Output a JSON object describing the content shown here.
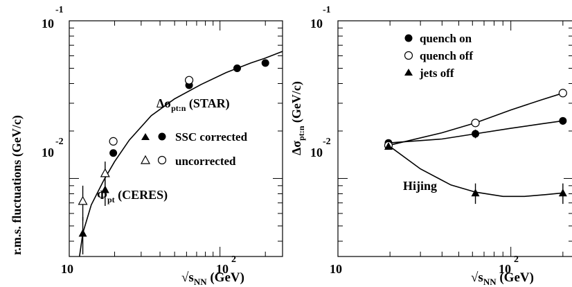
{
  "chart_data": [
    {
      "type": "scatter",
      "x_scale": "log",
      "y_scale": "log",
      "xlim": [
        10,
        260
      ],
      "ylim": [
        0.0032,
        0.1
      ],
      "x_ticklabels": {
        "base": "10",
        "exp": "2",
        "ten": "10"
      },
      "y_ticklabels": {
        "base": "10",
        "exp_top": "-1",
        "exp_mid": "-2"
      },
      "ylabel": "r.m.s. fluctuations (GeV/c)",
      "xlabel": {
        "prefix": "√s",
        "sub": "NN",
        "suffix": " (GeV)"
      },
      "annotations": {
        "star": {
          "prefix": "Δσ",
          "sub": "pt:n",
          "suffix": " (STAR)"
        },
        "ceres": {
          "prefix": "Φ",
          "sub": "pt",
          "suffix": " (CERES)"
        }
      },
      "legend": {
        "placement": "right-middle",
        "entries": [
          "SSC corrected",
          "uncorrected"
        ]
      },
      "series": [
        {
          "marker": "filled-triangle",
          "x": [
            12.3,
            17.3
          ],
          "y": [
            0.0045,
            0.0085
          ],
          "err": [
            0.0012,
            0.0018
          ]
        },
        {
          "marker": "open-triangle",
          "x": [
            12.3,
            17.3
          ],
          "y": [
            0.0072,
            0.0108
          ],
          "err": [
            0.0018,
            0.002
          ]
        },
        {
          "marker": "filled-circle",
          "x": [
            19.6,
            62.4,
            130,
            200
          ],
          "y": [
            0.0145,
            0.039,
            0.05,
            0.054
          ]
        },
        {
          "marker": "open-circle",
          "x": [
            19.6,
            62.4
          ],
          "y": [
            0.0172,
            0.042
          ]
        }
      ],
      "curve": [
        [
          11.7,
          0.0032
        ],
        [
          12.3,
          0.0045
        ],
        [
          14,
          0.0068
        ],
        [
          17,
          0.0098
        ],
        [
          20,
          0.0128
        ],
        [
          25,
          0.0175
        ],
        [
          35,
          0.025
        ],
        [
          50,
          0.032
        ],
        [
          75,
          0.0395
        ],
        [
          110,
          0.047
        ],
        [
          160,
          0.054
        ],
        [
          200,
          0.058
        ],
        [
          260,
          0.064
        ]
      ]
    },
    {
      "type": "scatter",
      "x_scale": "log",
      "y_scale": "log",
      "xlim": [
        10,
        230
      ],
      "ylim": [
        0.0032,
        0.1
      ],
      "x_ticklabels": {
        "base": "10",
        "exp": "2",
        "ten": "10"
      },
      "y_ticklabels": {
        "base": "10",
        "exp_top": "-1",
        "exp_mid": "-2"
      },
      "ylabel": {
        "prefix": "Δσ",
        "sub": "pt:n",
        "suffix": " (GeV/c)"
      },
      "xlabel": {
        "prefix": "√s",
        "sub": "NN",
        "suffix": " (GeV)"
      },
      "annotations": {
        "hijing": "Hijing"
      },
      "legend": {
        "placement": "top-left",
        "entries": [
          "quench on",
          "quench off",
          "jets off"
        ]
      },
      "series": [
        {
          "name": "quench on",
          "marker": "filled-circle",
          "x": [
            19.6,
            62.4,
            200
          ],
          "y": [
            0.0168,
            0.0192,
            0.0232
          ],
          "err": [
            0.0009,
            0.0012,
            0.0013
          ]
        },
        {
          "name": "quench off",
          "marker": "open-circle",
          "x": [
            19.6,
            62.4,
            200
          ],
          "y": [
            0.0162,
            0.0225,
            0.0348
          ]
        },
        {
          "name": "jets off",
          "marker": "filled-triangle",
          "x": [
            19.6,
            62.4,
            200
          ],
          "y": [
            0.016,
            0.0081,
            0.0081
          ],
          "err": [
            0.0007,
            0.0012,
            0.0012
          ]
        }
      ],
      "curves": [
        [
          [
            19.6,
            0.0168
          ],
          [
            40,
            0.0178
          ],
          [
            62.4,
            0.0192
          ],
          [
            100,
            0.0208
          ],
          [
            150,
            0.0222
          ],
          [
            200,
            0.0232
          ]
        ],
        [
          [
            19.6,
            0.0162
          ],
          [
            40,
            0.0195
          ],
          [
            62.4,
            0.0225
          ],
          [
            100,
            0.0272
          ],
          [
            150,
            0.0315
          ],
          [
            200,
            0.0348
          ]
        ],
        [
          [
            19.6,
            0.0162
          ],
          [
            30,
            0.0115
          ],
          [
            45,
            0.0091
          ],
          [
            62.4,
            0.0082
          ],
          [
            90,
            0.0077
          ],
          [
            120,
            0.0077
          ],
          [
            160,
            0.0079
          ],
          [
            200,
            0.0081
          ]
        ]
      ]
    }
  ]
}
